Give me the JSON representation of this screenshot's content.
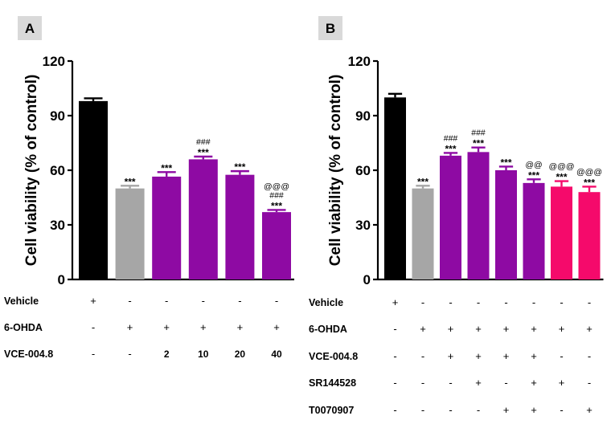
{
  "chart_data": [
    {
      "panel": "A",
      "type": "bar",
      "ylabel": "Cell viability (% of control)",
      "ylim": [
        0,
        120
      ],
      "yticks": [
        "0",
        "30",
        "60",
        "90",
        "120"
      ],
      "categories": [
        "Vehicle",
        "6-OHDA",
        "6-OHDA + VCE-004.8 2",
        "6-OHDA + VCE-004.8 10",
        "6-OHDA + VCE-004.8 20",
        "6-OHDA + VCE-004.8 40"
      ],
      "values": [
        98,
        50,
        56.5,
        66,
        57.5,
        37
      ],
      "errors": [
        1.5,
        1.5,
        2.5,
        1.5,
        2,
        1.2
      ],
      "colors": [
        "#000000",
        "#a6a6a6",
        "#8e0aa3",
        "#8e0aa3",
        "#8e0aa3",
        "#8e0aa3"
      ],
      "significance": [
        {
          "stars": "",
          "hash": "",
          "at": ""
        },
        {
          "stars": "***",
          "hash": "",
          "at": ""
        },
        {
          "stars": "***",
          "hash": "",
          "at": ""
        },
        {
          "stars": "***",
          "hash": "###",
          "at": ""
        },
        {
          "stars": "***",
          "hash": "",
          "at": ""
        },
        {
          "stars": "***",
          "hash": "###",
          "at": "@@@"
        }
      ],
      "treatment_table": [
        {
          "label": "Vehicle",
          "cells": [
            "+",
            "-",
            "-",
            "-",
            "-",
            "-"
          ]
        },
        {
          "label": "6-OHDA",
          "cells": [
            "-",
            "+",
            "+",
            "+",
            "+",
            "+"
          ]
        },
        {
          "label": "VCE-004.8",
          "cells": [
            "-",
            "-",
            "2",
            "10",
            "20",
            "40"
          ]
        }
      ]
    },
    {
      "panel": "B",
      "type": "bar",
      "ylabel": "Cell viability (% of control)",
      "ylim": [
        0,
        120
      ],
      "yticks": [
        "0",
        "30",
        "60",
        "90",
        "120"
      ],
      "categories": [
        "Vehicle",
        "6-OHDA",
        "VCE",
        "VCE+SR",
        "VCE+T007",
        "VCE+SR+T007",
        "SR",
        "T007"
      ],
      "values": [
        100,
        50,
        68,
        70,
        60,
        53,
        51,
        48
      ],
      "errors": [
        2,
        1.5,
        1.5,
        2.5,
        2,
        2,
        3,
        3
      ],
      "colors": [
        "#000000",
        "#a6a6a6",
        "#8e0aa3",
        "#8e0aa3",
        "#8e0aa3",
        "#8e0aa3",
        "#f50a6b",
        "#f50a6b"
      ],
      "significance": [
        {
          "stars": "",
          "hash": "",
          "at": ""
        },
        {
          "stars": "***",
          "hash": "",
          "at": ""
        },
        {
          "stars": "***",
          "hash": "###",
          "at": ""
        },
        {
          "stars": "***",
          "hash": "###",
          "at": ""
        },
        {
          "stars": "***",
          "hash": "",
          "at": ""
        },
        {
          "stars": "***",
          "hash": "",
          "at": "@@"
        },
        {
          "stars": "***",
          "hash": "",
          "at": "@@@"
        },
        {
          "stars": "***",
          "hash": "",
          "at": "@@@"
        }
      ],
      "treatment_table": [
        {
          "label": "Vehicle",
          "cells": [
            "+",
            "-",
            "-",
            "-",
            "-",
            "-",
            "-",
            "-"
          ]
        },
        {
          "label": "6-OHDA",
          "cells": [
            "-",
            "+",
            "+",
            "+",
            "+",
            "+",
            "+",
            "+"
          ]
        },
        {
          "label": "VCE-004.8",
          "cells": [
            "-",
            "-",
            "+",
            "+",
            "+",
            "+",
            "-",
            "-"
          ]
        },
        {
          "label": "SR144528",
          "cells": [
            "-",
            "-",
            "-",
            "+",
            "-",
            "+",
            "+",
            "-"
          ]
        },
        {
          "label": "T0070907",
          "cells": [
            "-",
            "-",
            "-",
            "-",
            "+",
            "+",
            "-",
            "+"
          ]
        }
      ]
    }
  ]
}
